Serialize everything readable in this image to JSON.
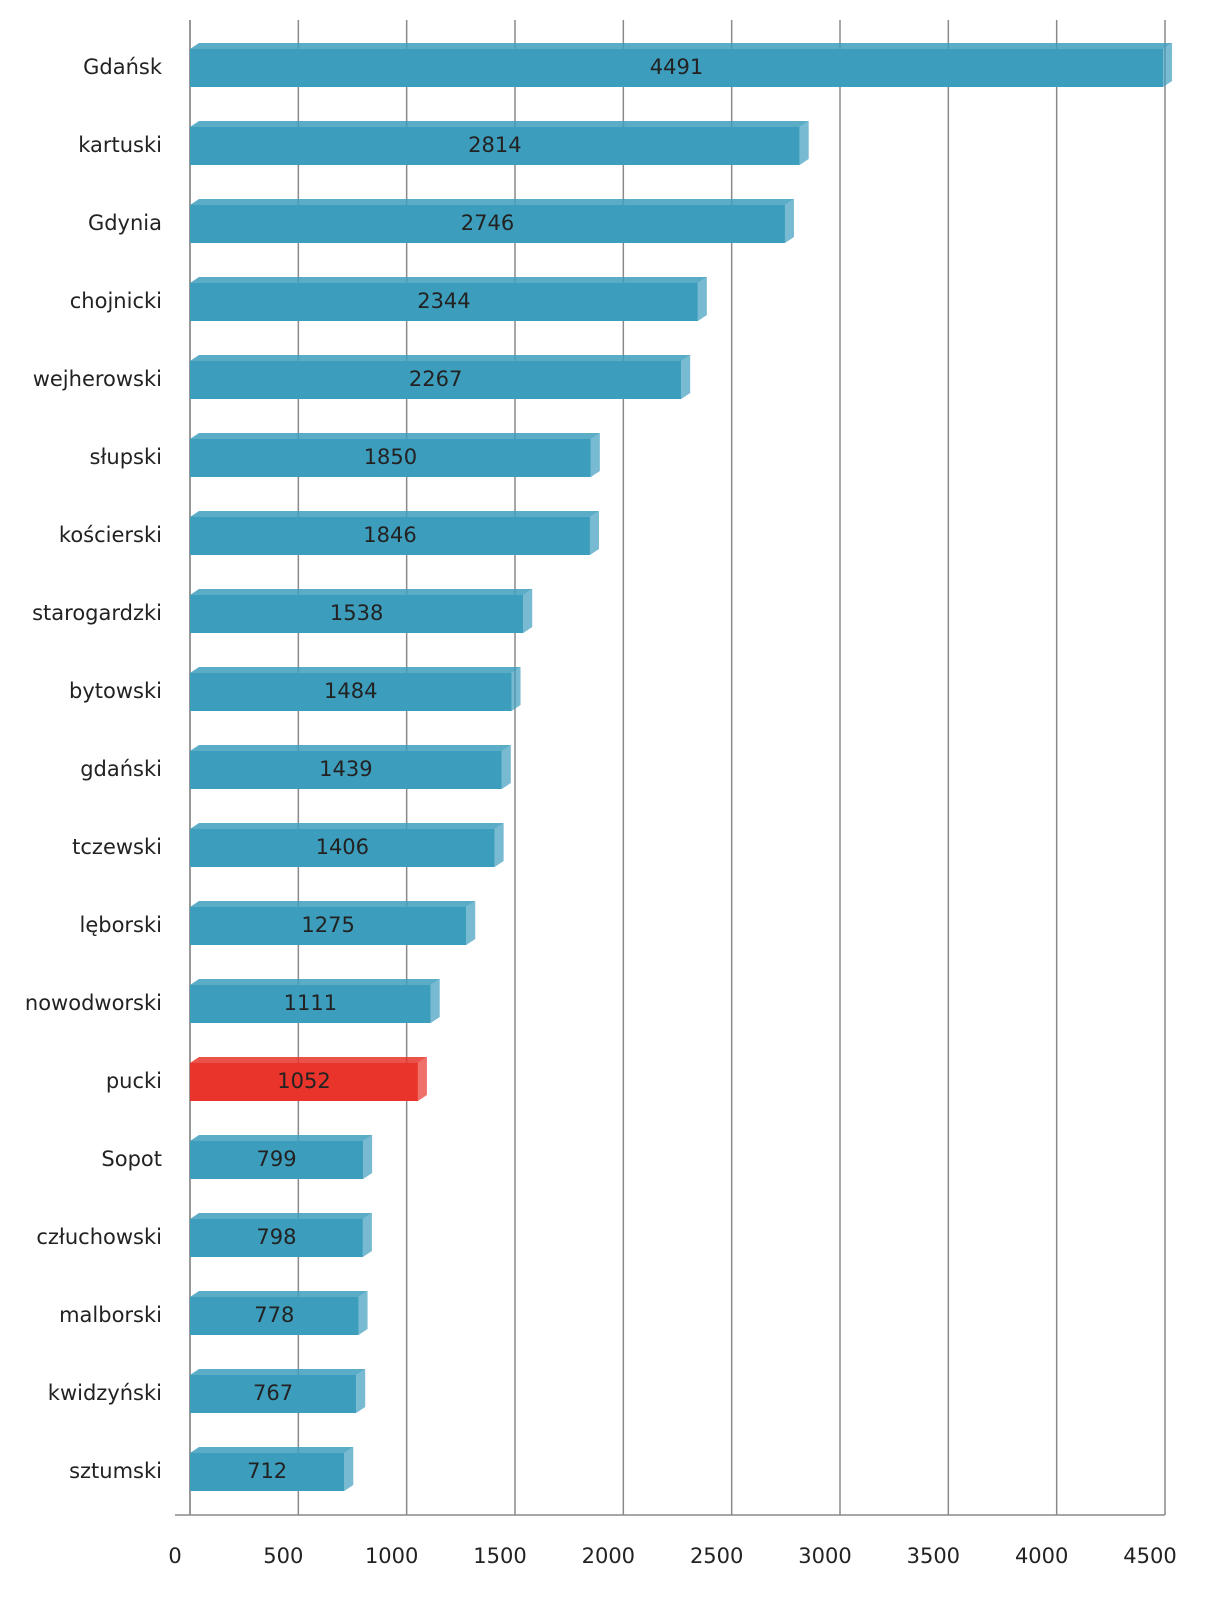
{
  "chart_data": {
    "type": "bar",
    "orientation": "horizontal",
    "categories": [
      "Gdańsk",
      "kartuski",
      "Gdynia",
      "chojnicki",
      "wejherowski",
      "słupski",
      "kościerski",
      "starogardzki",
      "bytowski",
      "gdański",
      "tczewski",
      "lęborski",
      "nowodworski",
      "pucki",
      "Sopot",
      "człuchowski",
      "malborski",
      "kwidzyński",
      "sztumski"
    ],
    "values": [
      4491,
      2814,
      2746,
      2344,
      2267,
      1850,
      1846,
      1538,
      1484,
      1439,
      1406,
      1275,
      1111,
      1052,
      799,
      798,
      778,
      767,
      712
    ],
    "colors": [
      "#3d9dbd",
      "#3d9dbd",
      "#3d9dbd",
      "#3d9dbd",
      "#3d9dbd",
      "#3d9dbd",
      "#3d9dbd",
      "#3d9dbd",
      "#3d9dbd",
      "#3d9dbd",
      "#3d9dbd",
      "#3d9dbd",
      "#3d9dbd",
      "#e8342a",
      "#3d9dbd",
      "#3d9dbd",
      "#3d9dbd",
      "#3d9dbd",
      "#3d9dbd"
    ],
    "xlim": [
      0,
      4500
    ],
    "xticks": [
      0,
      500,
      1000,
      1500,
      2000,
      2500,
      3000,
      3500,
      4000,
      4500
    ],
    "grid": true
  }
}
